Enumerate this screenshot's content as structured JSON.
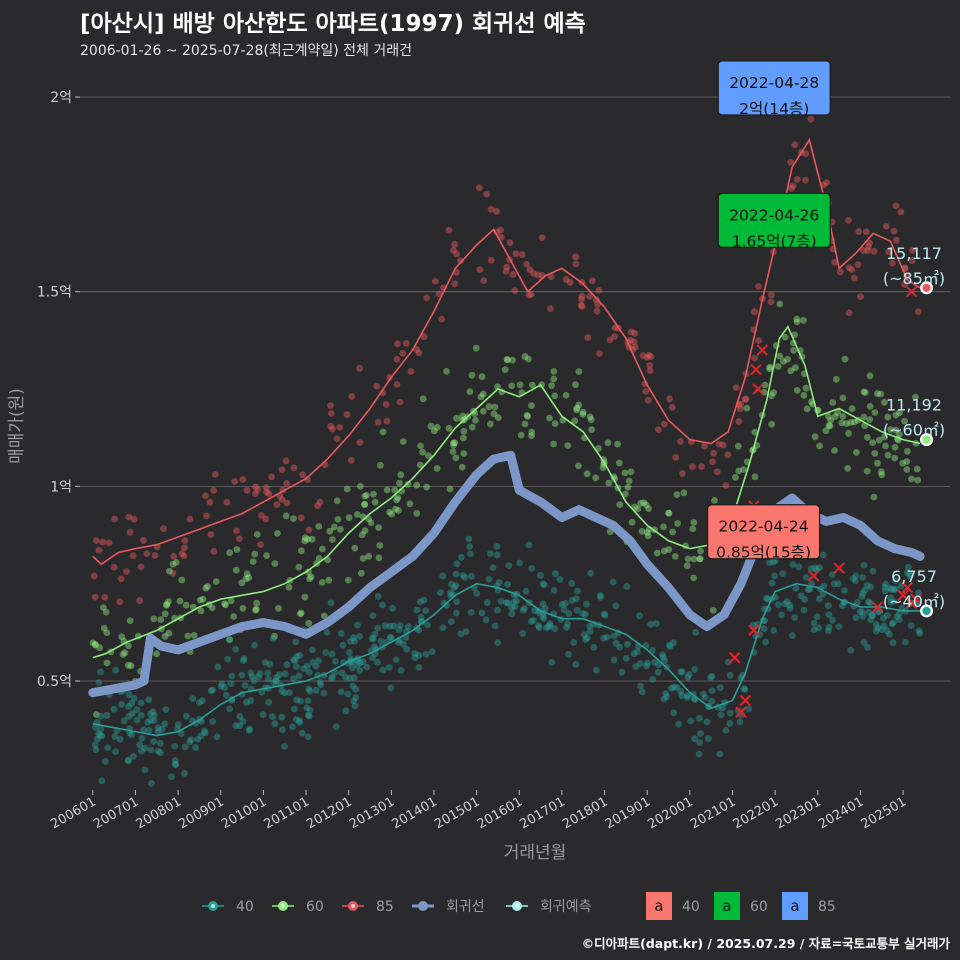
{
  "header": {
    "title": "[아산시] 배방 아산한도 아파트(1997) 회귀선 예측",
    "subtitle": "2006-01-26 ~ 2025-07-28(최근계약일) 전체 거래건"
  },
  "footer": {
    "credit": "©디아파트(dapt.kr) / 2025.07.29 / 자료=국토교통부 실거래가"
  },
  "colors": {
    "background": "#2a2a2c",
    "grid": "#6b6b6b",
    "s40": "#2a9e98",
    "s60": "#90ec80",
    "s85": "#e8595c",
    "regression": "#7c96c8",
    "forecast": "#a8f0ec",
    "cancel": "#e0262c",
    "box40": "#f8766d",
    "box60": "#00ba38",
    "box85": "#619cff"
  },
  "chart_data": {
    "type": "scatter",
    "xlabel": "거래년월",
    "ylabel": "매매가(원)",
    "xlim": [
      2005.7,
      2026.1
    ],
    "ylim": [
      0.22,
      2.09
    ],
    "x_ticks": [
      "200601",
      "200701",
      "200801",
      "200901",
      "201001",
      "201101",
      "201201",
      "201301",
      "201401",
      "201501",
      "201601",
      "201701",
      "201801",
      "201901",
      "202001",
      "202101",
      "202201",
      "202301",
      "202401",
      "202501"
    ],
    "y_ticks": [
      {
        "value": 0.5,
        "label": "0.5억"
      },
      {
        "value": 1.0,
        "label": "1억"
      },
      {
        "value": 1.5,
        "label": "1.5억"
      },
      {
        "value": 2.0,
        "label": "2억"
      }
    ],
    "series": [
      {
        "name": "85",
        "key": "s85",
        "trend": [
          [
            2006.0,
            0.82
          ],
          [
            2006.2,
            0.8
          ],
          [
            2006.6,
            0.83
          ],
          [
            2007.0,
            0.84
          ],
          [
            2007.5,
            0.85
          ],
          [
            2008.0,
            0.87
          ],
          [
            2008.5,
            0.89
          ],
          [
            2009.0,
            0.91
          ],
          [
            2009.5,
            0.93
          ],
          [
            2010.0,
            0.96
          ],
          [
            2010.5,
            0.99
          ],
          [
            2011.0,
            1.02
          ],
          [
            2011.5,
            1.07
          ],
          [
            2012.0,
            1.13
          ],
          [
            2012.5,
            1.2
          ],
          [
            2013.0,
            1.28
          ],
          [
            2013.5,
            1.35
          ],
          [
            2014.0,
            1.45
          ],
          [
            2014.5,
            1.56
          ],
          [
            2015.0,
            1.62
          ],
          [
            2015.4,
            1.66
          ],
          [
            2015.8,
            1.58
          ],
          [
            2016.2,
            1.5
          ],
          [
            2016.6,
            1.54
          ],
          [
            2017.0,
            1.56
          ],
          [
            2017.5,
            1.52
          ],
          [
            2018.0,
            1.46
          ],
          [
            2018.5,
            1.38
          ],
          [
            2019.0,
            1.26
          ],
          [
            2019.5,
            1.17
          ],
          [
            2020.0,
            1.12
          ],
          [
            2020.5,
            1.11
          ],
          [
            2020.9,
            1.14
          ],
          [
            2021.3,
            1.28
          ],
          [
            2021.7,
            1.48
          ],
          [
            2022.0,
            1.62
          ],
          [
            2022.4,
            1.82
          ],
          [
            2022.8,
            1.89
          ],
          [
            2023.2,
            1.72
          ],
          [
            2023.5,
            1.56
          ],
          [
            2023.9,
            1.6
          ],
          [
            2024.3,
            1.65
          ],
          [
            2024.7,
            1.63
          ],
          [
            2025.1,
            1.53
          ],
          [
            2025.4,
            1.51
          ]
        ],
        "scatter_band": 0.06,
        "scatter_count": 260
      },
      {
        "name": "60",
        "key": "s60",
        "trend": [
          [
            2006.0,
            0.56
          ],
          [
            2006.3,
            0.57
          ],
          [
            2006.8,
            0.6
          ],
          [
            2007.5,
            0.63
          ],
          [
            2008.0,
            0.66
          ],
          [
            2008.5,
            0.69
          ],
          [
            2009.0,
            0.71
          ],
          [
            2009.5,
            0.72
          ],
          [
            2010.0,
            0.73
          ],
          [
            2010.5,
            0.75
          ],
          [
            2011.0,
            0.78
          ],
          [
            2011.5,
            0.82
          ],
          [
            2012.0,
            0.88
          ],
          [
            2012.5,
            0.93
          ],
          [
            2013.0,
            0.97
          ],
          [
            2013.5,
            1.02
          ],
          [
            2014.0,
            1.08
          ],
          [
            2014.5,
            1.15
          ],
          [
            2015.0,
            1.2
          ],
          [
            2015.5,
            1.25
          ],
          [
            2016.0,
            1.23
          ],
          [
            2016.5,
            1.26
          ],
          [
            2017.0,
            1.18
          ],
          [
            2017.5,
            1.14
          ],
          [
            2018.0,
            1.06
          ],
          [
            2018.5,
            0.96
          ],
          [
            2019.0,
            0.9
          ],
          [
            2019.5,
            0.86
          ],
          [
            2020.0,
            0.84
          ],
          [
            2020.5,
            0.85
          ],
          [
            2021.0,
            0.92
          ],
          [
            2021.4,
            1.06
          ],
          [
            2021.8,
            1.22
          ],
          [
            2022.1,
            1.38
          ],
          [
            2022.3,
            1.41
          ],
          [
            2022.7,
            1.31
          ],
          [
            2023.0,
            1.18
          ],
          [
            2023.5,
            1.2
          ],
          [
            2024.0,
            1.17
          ],
          [
            2024.5,
            1.14
          ],
          [
            2025.0,
            1.12
          ],
          [
            2025.4,
            1.11
          ]
        ],
        "scatter_band": 0.07,
        "scatter_count": 420
      },
      {
        "name": "40",
        "key": "s40",
        "trend": [
          [
            2006.0,
            0.39
          ],
          [
            2006.5,
            0.38
          ],
          [
            2007.0,
            0.37
          ],
          [
            2007.5,
            0.36
          ],
          [
            2008.0,
            0.37
          ],
          [
            2008.5,
            0.4
          ],
          [
            2009.0,
            0.44
          ],
          [
            2009.5,
            0.47
          ],
          [
            2010.0,
            0.48
          ],
          [
            2010.5,
            0.49
          ],
          [
            2011.0,
            0.5
          ],
          [
            2011.5,
            0.52
          ],
          [
            2012.0,
            0.55
          ],
          [
            2012.5,
            0.57
          ],
          [
            2013.0,
            0.6
          ],
          [
            2013.5,
            0.63
          ],
          [
            2014.0,
            0.67
          ],
          [
            2014.5,
            0.72
          ],
          [
            2015.0,
            0.75
          ],
          [
            2015.5,
            0.74
          ],
          [
            2016.0,
            0.72
          ],
          [
            2016.5,
            0.68
          ],
          [
            2017.0,
            0.66
          ],
          [
            2017.5,
            0.66
          ],
          [
            2018.0,
            0.64
          ],
          [
            2018.5,
            0.62
          ],
          [
            2019.0,
            0.58
          ],
          [
            2019.5,
            0.53
          ],
          [
            2020.0,
            0.47
          ],
          [
            2020.5,
            0.43
          ],
          [
            2021.0,
            0.45
          ],
          [
            2021.3,
            0.52
          ],
          [
            2021.7,
            0.66
          ],
          [
            2022.0,
            0.73
          ],
          [
            2022.5,
            0.75
          ],
          [
            2023.0,
            0.74
          ],
          [
            2023.5,
            0.71
          ],
          [
            2024.0,
            0.69
          ],
          [
            2024.5,
            0.69
          ],
          [
            2025.0,
            0.68
          ],
          [
            2025.4,
            0.68
          ]
        ],
        "scatter_band": 0.06,
        "scatter_count": 640
      }
    ],
    "regression": [
      [
        2006.0,
        0.47
      ],
      [
        2006.5,
        0.48
      ],
      [
        2007.0,
        0.49
      ],
      [
        2007.2,
        0.5
      ],
      [
        2007.35,
        0.61
      ],
      [
        2007.6,
        0.59
      ],
      [
        2008.0,
        0.58
      ],
      [
        2008.5,
        0.6
      ],
      [
        2009.0,
        0.62
      ],
      [
        2009.5,
        0.64
      ],
      [
        2010.0,
        0.65
      ],
      [
        2010.5,
        0.64
      ],
      [
        2011.0,
        0.62
      ],
      [
        2011.5,
        0.65
      ],
      [
        2012.0,
        0.69
      ],
      [
        2012.5,
        0.74
      ],
      [
        2013.0,
        0.78
      ],
      [
        2013.5,
        0.82
      ],
      [
        2014.0,
        0.88
      ],
      [
        2014.5,
        0.96
      ],
      [
        2015.0,
        1.03
      ],
      [
        2015.4,
        1.07
      ],
      [
        2015.8,
        1.08
      ],
      [
        2016.0,
        0.99
      ],
      [
        2016.5,
        0.96
      ],
      [
        2017.0,
        0.92
      ],
      [
        2017.4,
        0.94
      ],
      [
        2017.8,
        0.92
      ],
      [
        2018.2,
        0.9
      ],
      [
        2018.6,
        0.86
      ],
      [
        2019.0,
        0.8
      ],
      [
        2019.5,
        0.74
      ],
      [
        2020.0,
        0.67
      ],
      [
        2020.4,
        0.64
      ],
      [
        2020.8,
        0.67
      ],
      [
        2021.2,
        0.75
      ],
      [
        2021.6,
        0.86
      ],
      [
        2022.0,
        0.94
      ],
      [
        2022.4,
        0.97
      ],
      [
        2022.8,
        0.93
      ],
      [
        2023.2,
        0.91
      ],
      [
        2023.6,
        0.92
      ],
      [
        2024.0,
        0.9
      ],
      [
        2024.4,
        0.86
      ],
      [
        2024.8,
        0.84
      ],
      [
        2025.2,
        0.83
      ],
      [
        2025.4,
        0.82
      ]
    ],
    "forecasts": [
      {
        "series": "85",
        "x": 2025.55,
        "y": 1.51,
        "label_count": "15,117",
        "label_area": "(~85㎡)"
      },
      {
        "series": "60",
        "x": 2025.55,
        "y": 1.12,
        "label_count": "11,192",
        "label_area": "(~60㎡)"
      },
      {
        "series": "40",
        "x": 2025.55,
        "y": 0.68,
        "label_count": "6,757",
        "label_area": "(~40㎡)"
      }
    ],
    "callouts": [
      {
        "series": "85",
        "date": "2022-04-28",
        "price": "2억(14층)",
        "x": 2020.9,
        "y": 1.99,
        "color_key": "box85"
      },
      {
        "series": "60",
        "date": "2022-04-26",
        "price": "1.65억(7층)",
        "x": 2020.9,
        "y": 1.65,
        "color_key": "box60"
      },
      {
        "series": "40",
        "date": "2022-04-24",
        "price": "0.85억(15층)",
        "x": 2020.65,
        "y": 0.85,
        "color_key": "box40"
      }
    ],
    "cancelled_marks": [
      [
        2021.3,
        0.45
      ],
      [
        2021.2,
        0.42
      ],
      [
        2021.05,
        0.56
      ],
      [
        2021.5,
        0.63
      ],
      [
        2021.55,
        1.3
      ],
      [
        2021.7,
        1.35
      ],
      [
        2021.4,
        0.93
      ],
      [
        2021.5,
        0.95
      ],
      [
        2022.9,
        0.77
      ],
      [
        2023.5,
        0.79
      ],
      [
        2024.4,
        0.69
      ],
      [
        2025.0,
        0.72
      ],
      [
        2025.1,
        0.74
      ],
      [
        2025.2,
        0.7
      ],
      [
        2025.3,
        0.71
      ],
      [
        2025.2,
        1.5
      ],
      [
        2021.6,
        1.25
      ]
    ],
    "legend": {
      "items": [
        {
          "label": "40",
          "color_key": "s40",
          "kind": "point"
        },
        {
          "label": "60",
          "color_key": "s60",
          "kind": "point"
        },
        {
          "label": "85",
          "color_key": "s85",
          "kind": "point"
        },
        {
          "label": "회귀선",
          "color_key": "regression",
          "kind": "line"
        },
        {
          "label": "회귀예측",
          "color_key": "forecast",
          "kind": "point"
        }
      ],
      "boxes": [
        {
          "glyph": "a",
          "label": "40",
          "color_key": "box40"
        },
        {
          "glyph": "a",
          "label": "60",
          "color_key": "box60"
        },
        {
          "glyph": "a",
          "label": "85",
          "color_key": "box85"
        }
      ],
      "position": "bottom"
    }
  }
}
